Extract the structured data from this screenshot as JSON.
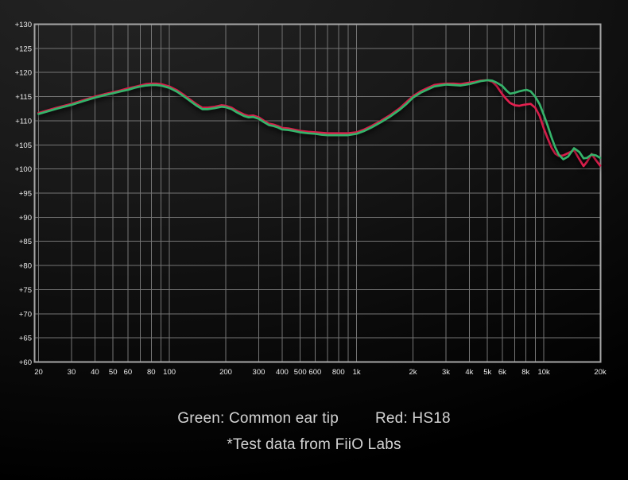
{
  "captions": {
    "legend_green": "Green: Common ear tip",
    "legend_red": "Red: HS18",
    "footnote": "*Test data from FiiO Labs"
  },
  "colors": {
    "green_curve": "#35b36a",
    "red_curve": "#e4204f",
    "grid": "#757575",
    "frame": "#a6a6a6",
    "tick_text": "#ededed",
    "caption_text": "#d3d3d3"
  },
  "chart_data": {
    "type": "line",
    "title": "",
    "xlabel": "",
    "ylabel": "",
    "grid": true,
    "legend_position": "below-chart-as-text",
    "x_axis": {
      "scale": "log",
      "min_hz": 20,
      "max_hz": 20000,
      "grid_hz": [
        20,
        30,
        40,
        50,
        60,
        70,
        80,
        90,
        100,
        200,
        300,
        400,
        500,
        600,
        700,
        800,
        900,
        1000,
        2000,
        3000,
        4000,
        5000,
        6000,
        7000,
        8000,
        9000,
        10000,
        20000
      ],
      "ticks": [
        {
          "hz": 20,
          "label": "20"
        },
        {
          "hz": 30,
          "label": "30"
        },
        {
          "hz": 40,
          "label": "40"
        },
        {
          "hz": 50,
          "label": "50"
        },
        {
          "hz": 60,
          "label": "60"
        },
        {
          "hz": 80,
          "label": "80"
        },
        {
          "hz": 100,
          "label": "100"
        },
        {
          "hz": 200,
          "label": "200"
        },
        {
          "hz": 300,
          "label": "300"
        },
        {
          "hz": 400,
          "label": "400"
        },
        {
          "hz": 500,
          "label": "500"
        },
        {
          "hz": 600,
          "label": "600"
        },
        {
          "hz": 800,
          "label": "800"
        },
        {
          "hz": 1000,
          "label": "1k"
        },
        {
          "hz": 2000,
          "label": "2k"
        },
        {
          "hz": 3000,
          "label": "3k"
        },
        {
          "hz": 4000,
          "label": "4k"
        },
        {
          "hz": 5000,
          "label": "5k"
        },
        {
          "hz": 6000,
          "label": "6k"
        },
        {
          "hz": 8000,
          "label": "8k"
        },
        {
          "hz": 10000,
          "label": "10k"
        },
        {
          "hz": 20000,
          "label": "20k"
        }
      ]
    },
    "y_axis": {
      "unit": "dB",
      "min_db": 60,
      "max_db": 130,
      "step_db": 5,
      "ticks": [
        {
          "db": 130,
          "label": "+130"
        },
        {
          "db": 125,
          "label": "+125"
        },
        {
          "db": 120,
          "label": "+120"
        },
        {
          "db": 115,
          "label": "+115"
        },
        {
          "db": 110,
          "label": "+110"
        },
        {
          "db": 105,
          "label": "+105"
        },
        {
          "db": 100,
          "label": "+100"
        },
        {
          "db": 95,
          "label": "+95"
        },
        {
          "db": 90,
          "label": "+90"
        },
        {
          "db": 85,
          "label": "+85"
        },
        {
          "db": 80,
          "label": "+80"
        },
        {
          "db": 75,
          "label": "+75"
        },
        {
          "db": 70,
          "label": "+70"
        },
        {
          "db": 65,
          "label": "+65"
        },
        {
          "db": 60,
          "label": "+60"
        }
      ]
    },
    "x_hz": [
      20,
      25,
      30,
      35,
      40,
      45,
      50,
      55,
      60,
      65,
      70,
      75,
      80,
      85,
      90,
      100,
      110,
      120,
      130,
      140,
      150,
      160,
      175,
      190,
      200,
      215,
      230,
      250,
      265,
      280,
      300,
      320,
      340,
      360,
      380,
      400,
      430,
      460,
      500,
      550,
      600,
      650,
      700,
      750,
      800,
      900,
      1000,
      1100,
      1200,
      1350,
      1500,
      1700,
      1850,
      2000,
      2200,
      2400,
      2600,
      2800,
      3000,
      3300,
      3600,
      4000,
      4300,
      4600,
      5000,
      5300,
      5600,
      6000,
      6300,
      6600,
      7000,
      7400,
      7800,
      8100,
      8500,
      9000,
      9500,
      10000,
      10500,
      11000,
      11500,
      12000,
      12700,
      13500,
      14500,
      15500,
      16300,
      17000,
      18000,
      19000,
      20000
    ],
    "series": [
      {
        "name": "Common ear tip",
        "color_key": "green_curve",
        "y_db": [
          111.4,
          112.5,
          113.3,
          114.1,
          114.8,
          115.3,
          115.7,
          116.1,
          116.4,
          116.8,
          117.1,
          117.3,
          117.4,
          117.4,
          117.3,
          116.8,
          116.0,
          115.0,
          114.0,
          113.1,
          112.4,
          112.4,
          112.6,
          112.9,
          112.8,
          112.4,
          111.7,
          111.0,
          110.7,
          110.8,
          110.4,
          109.7,
          109.1,
          108.9,
          108.6,
          108.2,
          108.1,
          107.9,
          107.6,
          107.4,
          107.3,
          107.1,
          107.0,
          107.0,
          107.0,
          107.0,
          107.3,
          107.9,
          108.6,
          109.7,
          110.8,
          112.3,
          113.5,
          114.8,
          115.8,
          116.5,
          117.1,
          117.3,
          117.5,
          117.4,
          117.3,
          117.6,
          117.9,
          118.2,
          118.4,
          118.3,
          117.9,
          117.2,
          116.3,
          115.6,
          115.8,
          116.1,
          116.3,
          116.4,
          116.1,
          115.0,
          113.4,
          111.2,
          108.9,
          106.5,
          104.5,
          103.0,
          102.0,
          102.6,
          104.3,
          103.5,
          102.2,
          102.3,
          103.0,
          102.8,
          102.3
        ]
      },
      {
        "name": "HS18",
        "color_key": "red_curve",
        "y_db": [
          111.6,
          112.7,
          113.5,
          114.3,
          115.0,
          115.5,
          115.9,
          116.3,
          116.7,
          117.0,
          117.3,
          117.6,
          117.7,
          117.7,
          117.6,
          117.1,
          116.3,
          115.3,
          114.3,
          113.4,
          112.7,
          112.7,
          112.9,
          113.2,
          113.1,
          112.7,
          112.0,
          111.3,
          111.0,
          111.1,
          110.7,
          110.0,
          109.4,
          109.2,
          108.9,
          108.5,
          108.4,
          108.2,
          107.9,
          107.7,
          107.6,
          107.5,
          107.4,
          107.4,
          107.4,
          107.4,
          107.6,
          108.2,
          108.9,
          110.0,
          111.1,
          112.6,
          113.9,
          115.1,
          116.1,
          116.8,
          117.4,
          117.6,
          117.7,
          117.7,
          117.6,
          117.9,
          118.1,
          118.3,
          118.4,
          118.1,
          117.2,
          115.5,
          114.5,
          113.7,
          113.2,
          113.1,
          113.3,
          113.4,
          113.5,
          112.7,
          111.0,
          108.4,
          106.3,
          104.4,
          103.2,
          102.7,
          102.8,
          103.3,
          103.9,
          102.0,
          100.6,
          101.5,
          103.1,
          101.8,
          100.7
        ]
      }
    ]
  }
}
